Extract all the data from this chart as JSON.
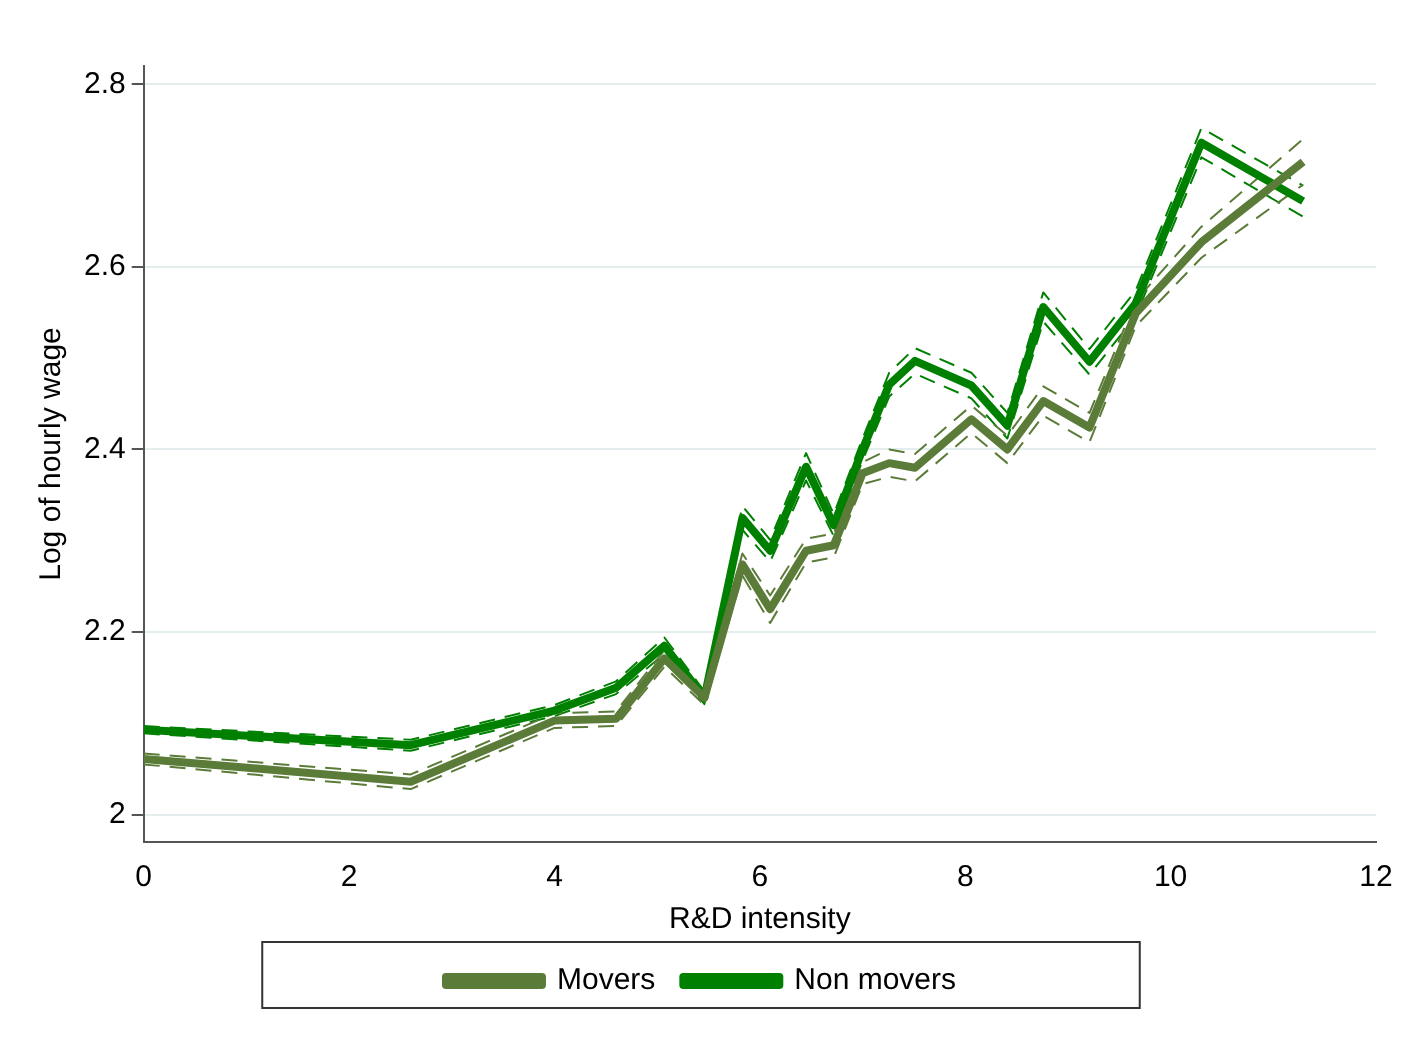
{
  "chart_data": {
    "type": "line",
    "xlabel": "R&D intensity",
    "ylabel": "Log of hourly wage",
    "x": [
      0,
      2.6,
      4,
      4.6,
      5.07,
      5.46,
      5.83,
      6.1,
      6.45,
      6.72,
      7.0,
      7.26,
      7.51,
      8.06,
      8.41,
      8.76,
      9.21,
      9.66,
      10.3,
      11.29
    ],
    "series": [
      {
        "name": "Movers",
        "color": "#5b7b38",
        "values": [
          2.061,
          2.036,
          2.103,
          2.105,
          2.171,
          2.128,
          2.274,
          2.225,
          2.289,
          2.295,
          2.374,
          2.385,
          2.38,
          2.433,
          2.4,
          2.453,
          2.424,
          2.549,
          2.627,
          2.715
        ]
      },
      {
        "name": "Non movers",
        "color": "#008000",
        "values": [
          2.093,
          2.076,
          2.114,
          2.139,
          2.185,
          2.128,
          2.325,
          2.289,
          2.381,
          2.317,
          2.4,
          2.471,
          2.497,
          2.47,
          2.426,
          2.556,
          2.496,
          2.56,
          2.736,
          2.672
        ]
      },
      {
        "color": "#5b7b38",
        "line_style": "dashed",
        "values": [
          2.055,
          2.028,
          2.095,
          2.097,
          2.162,
          2.12,
          2.262,
          2.21,
          2.276,
          2.282,
          2.362,
          2.37,
          2.365,
          2.418,
          2.385,
          2.437,
          2.408,
          2.535,
          2.61,
          2.69
        ]
      },
      {
        "color": "#5b7b38",
        "line_style": "dashed",
        "values": [
          2.067,
          2.044,
          2.111,
          2.113,
          2.18,
          2.136,
          2.286,
          2.24,
          2.302,
          2.308,
          2.386,
          2.4,
          2.395,
          2.448,
          2.415,
          2.469,
          2.44,
          2.563,
          2.644,
          2.74
        ]
      },
      {
        "color": "#008000",
        "line_style": "dashed",
        "values": [
          2.089,
          2.07,
          2.108,
          2.132,
          2.176,
          2.121,
          2.312,
          2.277,
          2.366,
          2.305,
          2.388,
          2.458,
          2.483,
          2.456,
          2.412,
          2.54,
          2.482,
          2.546,
          2.72,
          2.655
        ]
      },
      {
        "color": "#008000",
        "line_style": "dashed",
        "values": [
          2.097,
          2.082,
          2.12,
          2.146,
          2.194,
          2.135,
          2.338,
          2.301,
          2.396,
          2.329,
          2.412,
          2.484,
          2.511,
          2.484,
          2.44,
          2.572,
          2.51,
          2.574,
          2.752,
          2.689
        ]
      }
    ],
    "xlim": [
      0,
      12
    ],
    "xticks": [
      0,
      2,
      4,
      6,
      8,
      10,
      12
    ],
    "ylim": [
      1.97,
      2.82
    ],
    "yticks": [
      {
        "value": 2,
        "label": "2"
      },
      2.2,
      2.4,
      2.6,
      2.8
    ],
    "grid": "y",
    "legend": "bottom",
    "marker": "none",
    "line_style": "solid"
  }
}
